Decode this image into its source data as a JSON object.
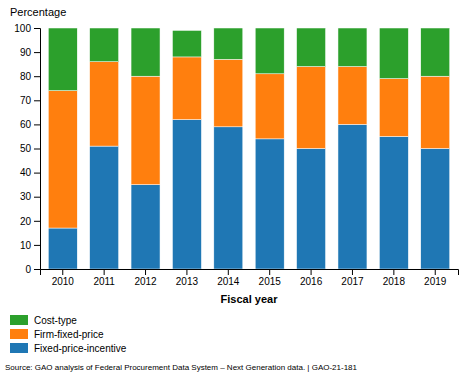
{
  "chart_data": {
    "type": "bar",
    "stacked": true,
    "xlabel": "Fiscal year",
    "ylabel": "Percentage",
    "categories": [
      "2010",
      "2011",
      "2012",
      "2013",
      "2014",
      "2015",
      "2016",
      "2017",
      "2018",
      "2019"
    ],
    "series": [
      {
        "name": "Fixed-price-incentive",
        "values": [
          17,
          51,
          35,
          62,
          59,
          54,
          50,
          60,
          55,
          50
        ]
      },
      {
        "name": "Firm-fixed-price",
        "values": [
          57,
          35,
          45,
          26,
          28,
          27,
          34,
          24,
          24,
          30
        ]
      },
      {
        "name": "Cost-type",
        "values": [
          26,
          14,
          20,
          11,
          13,
          19,
          16,
          16,
          21,
          20
        ]
      }
    ],
    "ylim": [
      0,
      100
    ],
    "yticks": [
      0,
      10,
      20,
      30,
      40,
      50,
      60,
      70,
      80,
      90,
      100
    ],
    "grid": false,
    "legend": "bottom",
    "annotations": [
      "Source: GAO analysis of Federal Procurement Data System – Next Generation data.  |  GAO-21-181"
    ]
  }
}
